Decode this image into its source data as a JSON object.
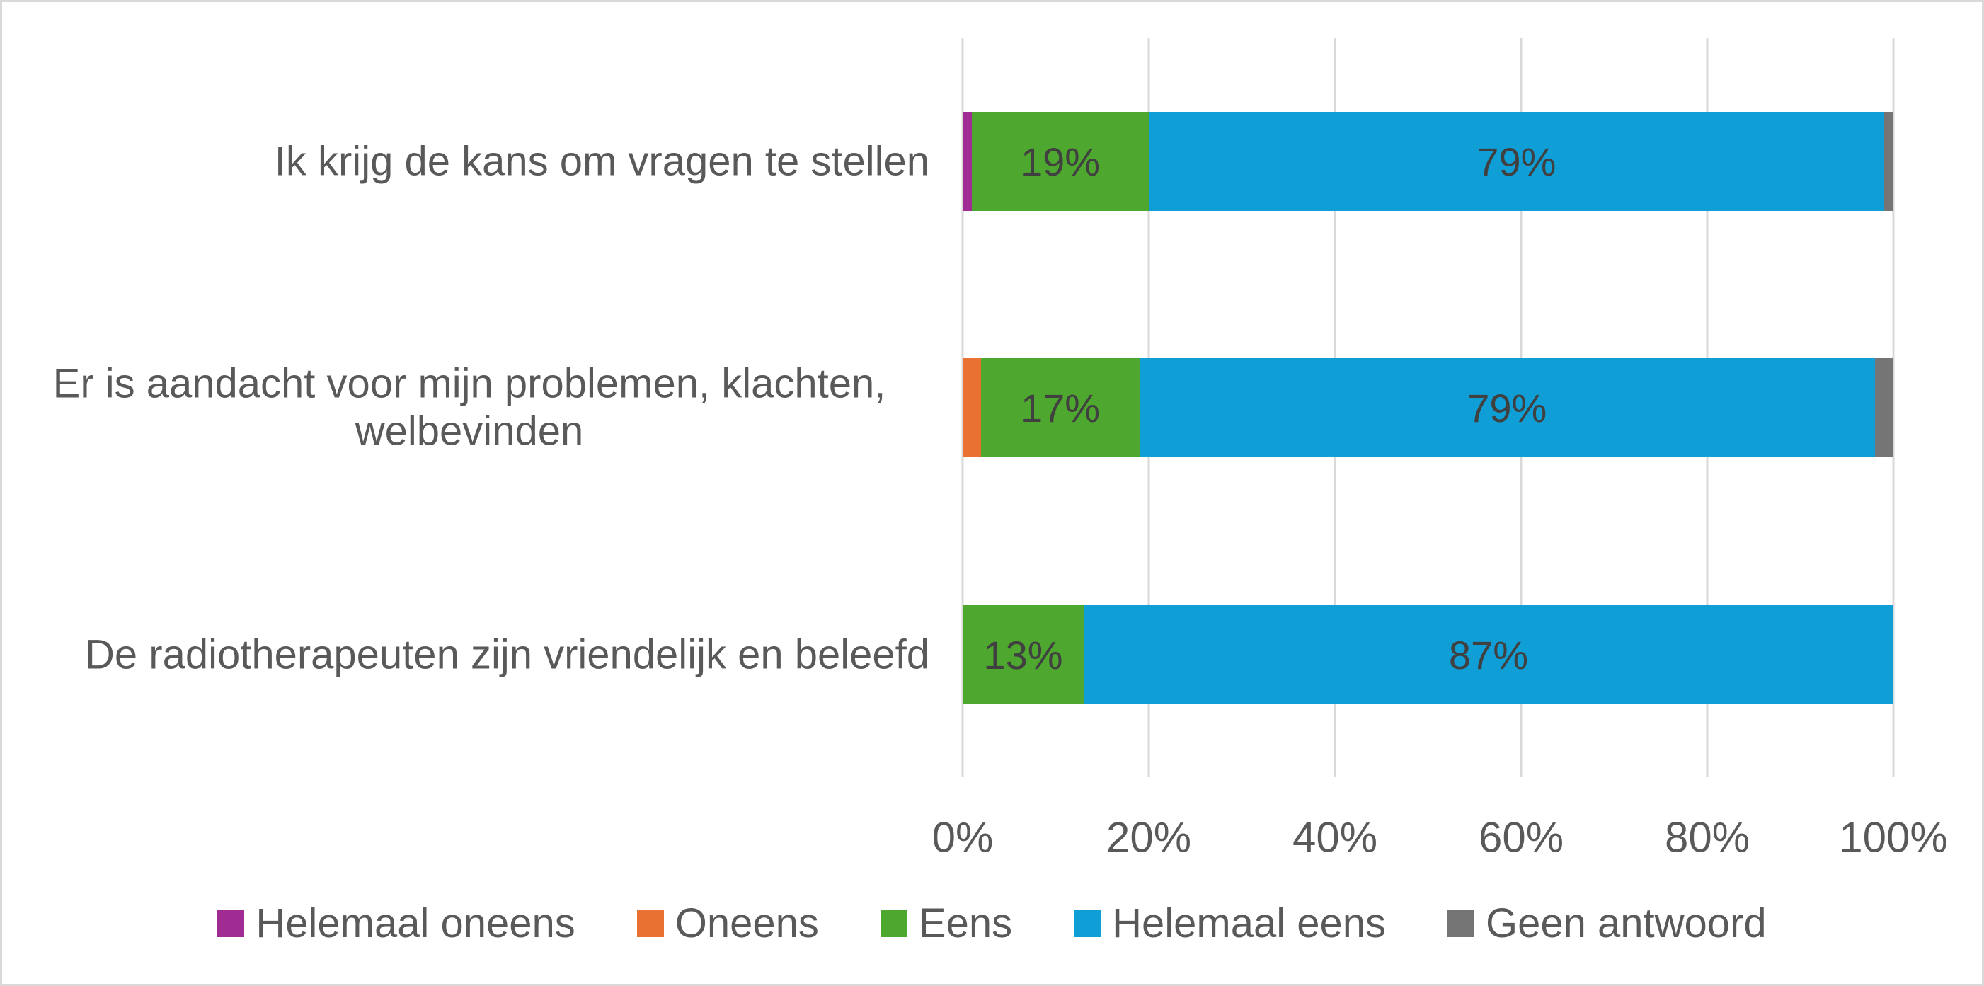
{
  "chart_data": {
    "type": "bar",
    "orientation": "horizontal",
    "stacked": true,
    "title": "",
    "xlabel": "",
    "ylabel": "",
    "categories": [
      "Ik krijg de kans om vragen te stellen",
      "Er is aandacht voor mijn problemen, klachten, welbevinden",
      "De radiotherapeuten zijn vriendelijk en beleefd"
    ],
    "series": [
      {
        "name": "Helemaal oneens",
        "color": "#A02B93",
        "values": [
          1,
          0,
          0
        ]
      },
      {
        "name": "Oneens",
        "color": "#E97132",
        "values": [
          0,
          2,
          0
        ]
      },
      {
        "name": "Eens",
        "color": "#4EA72E",
        "values": [
          19,
          17,
          13
        ]
      },
      {
        "name": "Helemaal eens",
        "color": "#0F9ED5",
        "values": [
          79,
          79,
          87
        ]
      },
      {
        "name": "Geen antwoord",
        "color": "#757575",
        "values": [
          1,
          2,
          0
        ]
      }
    ],
    "data_labels": {
      "format": "{value}%",
      "min_value_to_show": 10,
      "shown_per_category": [
        [
          "19%",
          "79%"
        ],
        [
          "17%",
          "79%"
        ],
        [
          "13%",
          "87%"
        ]
      ]
    },
    "x_ticks": [
      "0%",
      "20%",
      "40%",
      "60%",
      "80%",
      "100%"
    ],
    "xlim": [
      0,
      100
    ],
    "grid": "vertical-only",
    "gridline_color": "#D9D9D9",
    "frame_border_color": "#D9D9D9",
    "background_color": "#FFFFFF",
    "axis_text_color": "#595959",
    "data_label_text_color": "#404040",
    "legend_position": "bottom",
    "legend": [
      {
        "label": "Helemaal oneens",
        "color": "#A02B93"
      },
      {
        "label": "Oneens",
        "color": "#E97132"
      },
      {
        "label": "Eens",
        "color": "#4EA72E"
      },
      {
        "label": "Helemaal eens",
        "color": "#0F9ED5"
      },
      {
        "label": "Geen antwoord",
        "color": "#757575"
      }
    ]
  }
}
